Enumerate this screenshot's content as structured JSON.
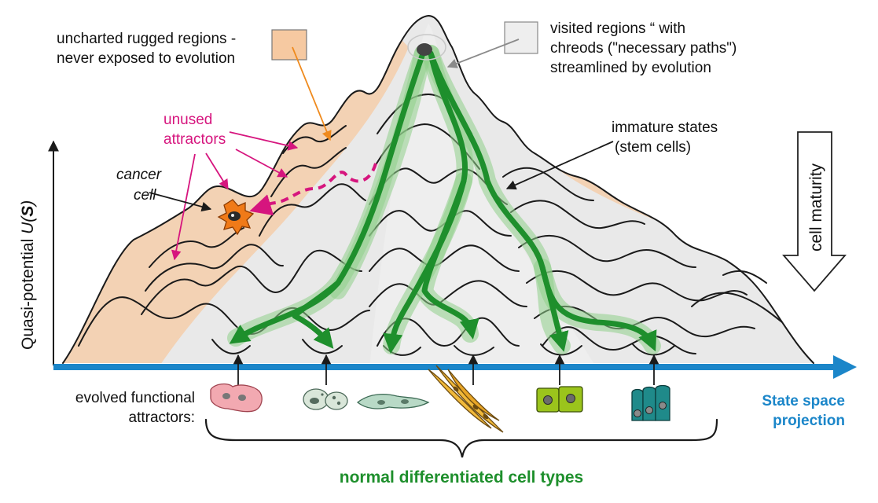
{
  "labels": {
    "uncharted": [
      "uncharted rugged regions -",
      "never exposed to evolution"
    ],
    "visited": [
      "visited regions “ with",
      "chreods  (\"necessary paths\")",
      "streamlined by evolution"
    ],
    "unused": [
      "unused",
      "attractors"
    ],
    "cancer": [
      "cancer",
      "cell"
    ],
    "immature": [
      "immature states",
      "(stem cells)"
    ],
    "cell_maturity": "cell maturity",
    "y_axis": {
      "prefix": "Quasi-potential ",
      "u": "U",
      "open": "(",
      "s": "S",
      "close": ")"
    },
    "evolved": [
      "evolved functional",
      "attractors:"
    ],
    "state_space": [
      "State space",
      "projection"
    ],
    "normal": "normal differentiated cell types"
  },
  "colors": {
    "uncharted": "#f6c9a1",
    "visited": "#e9e9e9",
    "chreod": "#1e8f2c",
    "unused_label": "#d6157e",
    "state_axis": "#1b86c9",
    "cancer_cell": "#f07a18"
  },
  "icons": {
    "cell_types": [
      "pink-cell-cluster",
      "granular-cell",
      "flat-cells",
      "spindle-cells",
      "green-cuboidal-cells",
      "teal-columnar-cells"
    ]
  }
}
